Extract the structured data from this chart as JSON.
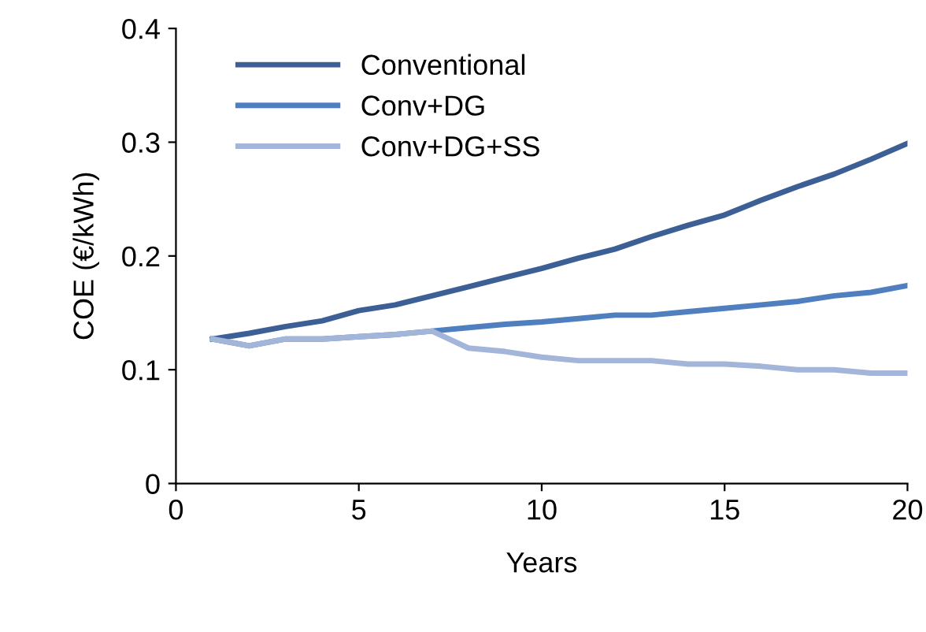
{
  "chart_data": {
    "type": "line",
    "xlabel": "Years",
    "ylabel": "COE (€/kWh)",
    "x": [
      1,
      2,
      3,
      4,
      5,
      6,
      7,
      8,
      9,
      10,
      11,
      12,
      13,
      14,
      15,
      16,
      17,
      18,
      19,
      20
    ],
    "series": [
      {
        "name": "Conventional",
        "color": "#3c6096",
        "values": [
          0.127,
          0.132,
          0.138,
          0.143,
          0.152,
          0.157,
          0.165,
          0.173,
          0.181,
          0.189,
          0.198,
          0.206,
          0.217,
          0.227,
          0.236,
          0.249,
          0.261,
          0.272,
          0.285,
          0.299
        ]
      },
      {
        "name": "Conv+DG",
        "color": "#4f7fbf",
        "values": [
          0.127,
          0.121,
          0.127,
          0.127,
          0.129,
          0.131,
          0.134,
          0.137,
          0.14,
          0.142,
          0.145,
          0.148,
          0.148,
          0.151,
          0.154,
          0.157,
          0.16,
          0.165,
          0.168,
          0.174
        ]
      },
      {
        "name": "Conv+DG+SS",
        "color": "#a3b5d9",
        "values": [
          0.127,
          0.121,
          0.127,
          0.127,
          0.129,
          0.131,
          0.134,
          0.119,
          0.116,
          0.111,
          0.108,
          0.108,
          0.108,
          0.105,
          0.105,
          0.103,
          0.1,
          0.1,
          0.097,
          0.097
        ]
      }
    ],
    "xlim": [
      0,
      20
    ],
    "xticks": [
      0,
      5,
      10,
      15,
      20
    ],
    "ylim": [
      0,
      0.4
    ],
    "yticks": [
      {
        "value": 0,
        "label": "0"
      },
      0.1,
      0.2,
      0.3,
      0.4
    ],
    "grid": false,
    "legend": "top left",
    "marker": "none",
    "line_style": "solid"
  }
}
